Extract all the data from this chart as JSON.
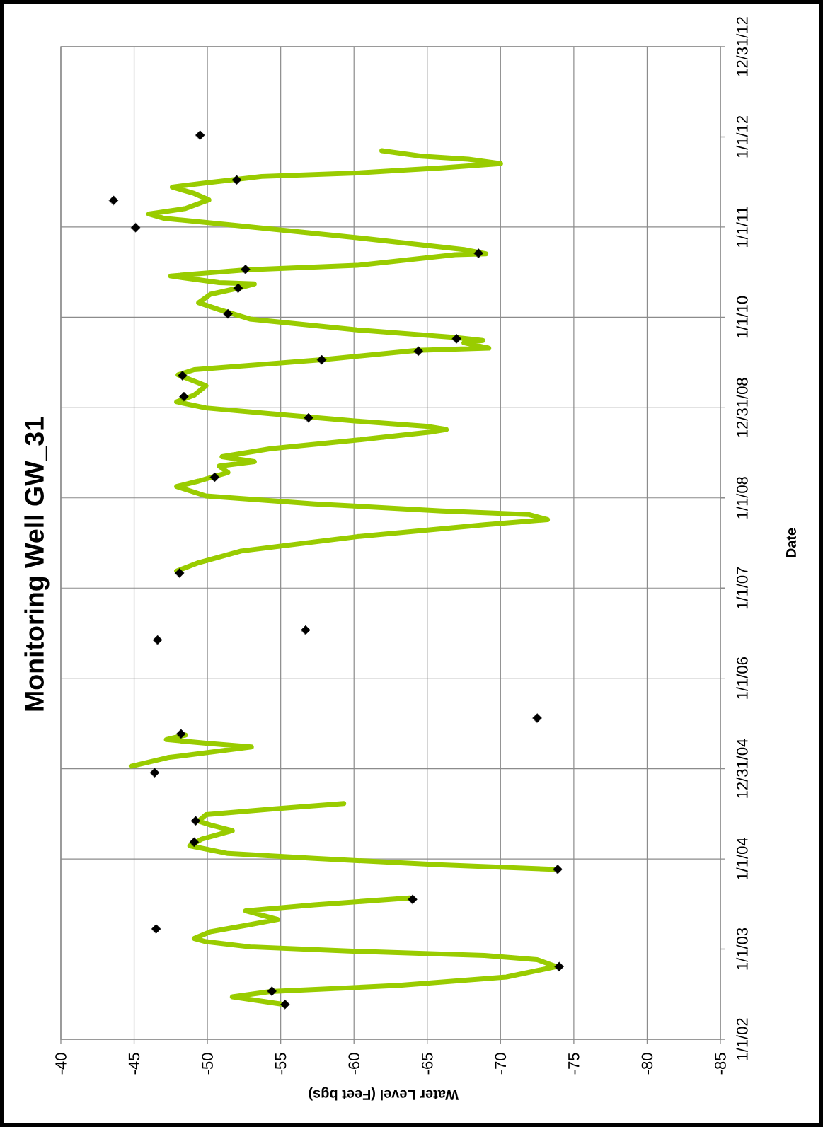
{
  "chart_data": {
    "type": "line",
    "orientation": "horizontal",
    "title": "Monitoring Well GW_31",
    "xlabel": "Water Level (Feet bgs)",
    "ylabel": "Date",
    "xlim": [
      -40,
      -85
    ],
    "xticks": [
      -40,
      -45,
      -50,
      -55,
      -60,
      -65,
      -70,
      -75,
      -80,
      -85
    ],
    "ylim": [
      "2002-01-01",
      "2012-12-31"
    ],
    "yticks": [
      {
        "value": "2002-01-01",
        "label": "1/1/02"
      },
      {
        "value": "2003-01-01",
        "label": "1/1/03"
      },
      {
        "value": "2004-01-01",
        "label": "1/1/04"
      },
      {
        "value": "2004-12-31",
        "label": "12/31/04"
      },
      {
        "value": "2006-01-01",
        "label": "1/1/06"
      },
      {
        "value": "2007-01-01",
        "label": "1/1/07"
      },
      {
        "value": "2008-01-01",
        "label": "1/1/08"
      },
      {
        "value": "2008-12-31",
        "label": "12/31/08"
      },
      {
        "value": "2010-01-01",
        "label": "1/1/10"
      },
      {
        "value": "2011-01-01",
        "label": "1/1/11"
      },
      {
        "value": "2012-01-01",
        "label": "1/1/12"
      },
      {
        "value": "2012-12-31",
        "label": "12/31/12"
      }
    ],
    "grid": true,
    "series": [
      {
        "color": "#99cc00",
        "x": [
          "2002-05-22",
          "2002-06-22",
          "2002-07-13",
          "2002-08-07",
          "2002-09-10",
          "2002-10-22",
          "2002-11-19",
          "2002-12-06",
          "2002-12-23",
          "2003-01-10",
          "2003-01-31",
          "2003-02-13",
          "2003-03-12",
          "2003-04-10",
          "2003-05-01",
          "2003-06-05",
          "2003-06-29",
          "2003-07-27",
          "2003-09-15",
          "2003-11-20",
          "2003-12-08",
          "2004-01-03",
          "2004-01-23",
          "2004-02-23",
          "2004-03-21",
          "2004-04-24",
          "2004-05-17",
          "2004-06-02",
          "2004-06-28",
          "2004-07-20",
          "2004-08-12",
          "2004-10-15",
          "2005-01-10",
          "2005-02-14",
          "2005-03-29",
          "2005-04-13",
          "2005-04-28",
          "2005-05-16",
          "2006-01-01",
          "2007-03-11",
          "2007-04-14",
          "2007-05-31",
          "2007-07-28",
          "2007-09-14",
          "2007-10-05",
          "2007-10-26",
          "2007-11-09",
          "2007-12-08",
          "2008-01-09",
          "2008-02-16",
          "2008-03-09",
          "2008-04-13",
          "2008-05-09",
          "2008-05-27",
          "2008-06-16",
          "2008-07-18",
          "2008-08-22",
          "2008-09-25",
          "2008-10-04",
          "2008-10-16",
          "2008-11-07",
          "2008-12-07",
          "2008-12-30",
          "2009-01-24",
          "2009-02-20",
          "2009-03-30",
          "2009-05-13",
          "2009-06-03",
          "2009-07-13",
          "2009-08-20",
          "2009-08-29",
          "2009-09-20",
          "2009-09-29",
          "2009-10-11",
          "2009-11-11",
          "2009-12-25",
          "2010-02-01",
          "2010-03-01",
          "2010-04-04",
          "2010-04-29",
          "2010-05-16",
          "2010-05-21",
          "2010-06-17",
          "2010-07-12",
          "2010-07-30",
          "2010-09-11",
          "2010-09-15",
          "2010-10-02",
          "2010-11-19",
          "2011-01-11",
          "2011-02-06",
          "2011-02-23",
          "2011-03-17",
          "2011-04-21",
          "2011-05-17",
          "2011-06-12",
          "2011-06-29",
          "2011-07-25",
          "2011-08-08",
          "2011-08-29",
          "2011-09-15",
          "2011-10-03",
          "2011-10-15",
          "2011-11-06"
        ],
        "values": [
          -55.2,
          -51.7,
          -54.3,
          -63.1,
          -70.4,
          -73.8,
          -72.5,
          -68.9,
          -60.2,
          -52.9,
          -49.9,
          -49.1,
          -50.2,
          -52.9,
          -54.8,
          -52.6,
          -57.3,
          -63.8,
          null,
          -73.6,
          -66.0,
          -57.3,
          -51.4,
          -48.8,
          -49.6,
          -51.7,
          -50.2,
          -49.4,
          -49.9,
          -54.3,
          -59.3,
          null,
          -44.8,
          -47.3,
          -53.0,
          -49.9,
          -47.2,
          -48.5,
          null,
          -47.9,
          -49.4,
          -52.3,
          -60.2,
          -68.9,
          -73.2,
          -71.9,
          -66.0,
          -57.3,
          -49.9,
          -47.9,
          -49.4,
          -51.4,
          -50.8,
          -53.2,
          -51.0,
          -54.3,
          -60.2,
          -65.4,
          -66.3,
          -65.1,
          -60.2,
          -54.3,
          -49.9,
          -47.9,
          -49.1,
          -49.9,
          -48.0,
          -49.1,
          -57.8,
          -64.3,
          -69.2,
          -67.5,
          -68.8,
          -66.9,
          -60.2,
          -52.9,
          -50.8,
          -49.4,
          -50.2,
          -52.1,
          -53.2,
          -50.8,
          -47.5,
          -52.6,
          -60.2,
          -66.9,
          -69.0,
          -67.5,
          -60.2,
          -51.4,
          -47.0,
          -46.0,
          -48.5,
          -50.1,
          -49.1,
          -47.6,
          -49.9,
          -53.7,
          -60.2,
          -66.0,
          -70.0,
          -67.8,
          -64.6,
          -61.9
        ]
      },
      {
        "type": "scatter",
        "color": "#000000",
        "marker": "diamond",
        "x": [
          "2002-05-22",
          "2002-07-15",
          "2002-10-22",
          "2003-03-24",
          "2003-07-21",
          "2003-11-20",
          "2004-03-09",
          "2004-06-03",
          "2004-12-15",
          "2005-05-21",
          "2005-07-24",
          "2006-06-05",
          "2006-07-15",
          "2007-03-03",
          "2008-03-25",
          "2008-11-20",
          "2009-02-14",
          "2009-05-10",
          "2009-07-13",
          "2009-08-17",
          "2009-10-06",
          "2010-01-15",
          "2010-04-29",
          "2010-07-14",
          "2010-09-17",
          "2010-12-30",
          "2011-04-19",
          "2011-07-11",
          "2012-01-08"
        ],
        "values": [
          -55.3,
          -54.4,
          -74.0,
          -46.5,
          -64.0,
          -73.9,
          -49.1,
          -49.2,
          -46.4,
          -48.2,
          -72.5,
          -46.6,
          -56.7,
          -48.1,
          -50.5,
          -56.9,
          -48.4,
          -48.3,
          -57.8,
          -64.4,
          -67.0,
          -51.4,
          -52.1,
          -52.6,
          -68.5,
          -45.1,
          -43.6,
          -52.0,
          -49.5
        ]
      }
    ]
  }
}
